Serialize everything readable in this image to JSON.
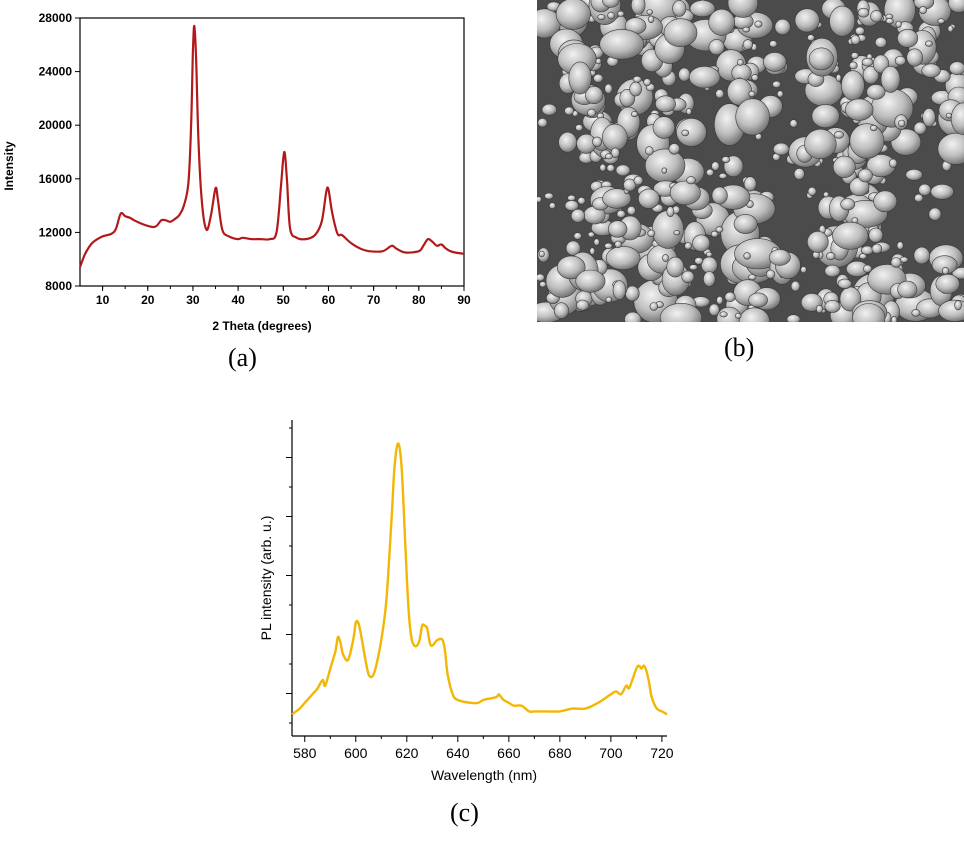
{
  "panels": {
    "a": {
      "label": "(a)"
    },
    "b": {
      "label": "(b)"
    },
    "c": {
      "label": "(c)"
    }
  },
  "colors": {
    "xrd_line": "#b11a1a",
    "pl_line": "#f2b705",
    "sem_bg": "#4b4b4b"
  },
  "chart_data": [
    {
      "id": "xrd",
      "type": "line",
      "xlabel": "2 Theta (degrees)",
      "ylabel": "Intensity",
      "xlim": [
        5,
        90
      ],
      "ylim": [
        8000,
        28000
      ],
      "xticks": [
        10,
        20,
        30,
        40,
        50,
        60,
        70,
        80,
        90
      ],
      "yticks": [
        8000,
        12000,
        16000,
        20000,
        24000,
        28000
      ],
      "grid": false,
      "series": [
        {
          "color": "#b11a1a",
          "points": [
            [
              5,
              9400
            ],
            [
              6,
              10300
            ],
            [
              7,
              10900
            ],
            [
              8,
              11300
            ],
            [
              10,
              11700
            ],
            [
              12,
              11900
            ],
            [
              13,
              12300
            ],
            [
              14,
              13400
            ],
            [
              15,
              13200
            ],
            [
              16,
              13100
            ],
            [
              17,
              12900
            ],
            [
              19,
              12600
            ],
            [
              21,
              12400
            ],
            [
              22,
              12500
            ],
            [
              23,
              12900
            ],
            [
              24,
              12900
            ],
            [
              25,
              12800
            ],
            [
              26,
              13000
            ],
            [
              27,
              13300
            ],
            [
              28,
              14000
            ],
            [
              29,
              15700
            ],
            [
              29.6,
              20000
            ],
            [
              30,
              25500
            ],
            [
              30.3,
              27400
            ],
            [
              30.7,
              25000
            ],
            [
              31.2,
              19000
            ],
            [
              32,
              14200
            ],
            [
              33,
              12200
            ],
            [
              34,
              13300
            ],
            [
              35,
              15300
            ],
            [
              35.5,
              14500
            ],
            [
              36.5,
              12200
            ],
            [
              38,
              11700
            ],
            [
              40,
              11500
            ],
            [
              41,
              11600
            ],
            [
              43,
              11500
            ],
            [
              45,
              11500
            ],
            [
              47,
              11500
            ],
            [
              48.5,
              12000
            ],
            [
              49.5,
              15500
            ],
            [
              50.2,
              18000
            ],
            [
              50.8,
              16000
            ],
            [
              51.5,
              12300
            ],
            [
              53,
              11600
            ],
            [
              55,
              11500
            ],
            [
              57,
              11800
            ],
            [
              58.5,
              12800
            ],
            [
              59.5,
              15000
            ],
            [
              60,
              15200
            ],
            [
              60.8,
              13500
            ],
            [
              62,
              11900
            ],
            [
              63,
              11800
            ],
            [
              65,
              11200
            ],
            [
              67,
              10800
            ],
            [
              69,
              10600
            ],
            [
              72,
              10600
            ],
            [
              74,
              11000
            ],
            [
              75,
              10800
            ],
            [
              77,
              10500
            ],
            [
              80,
              10600
            ],
            [
              81,
              11000
            ],
            [
              82,
              11500
            ],
            [
              83,
              11300
            ],
            [
              84,
              11000
            ],
            [
              85,
              11100
            ],
            [
              86,
              10800
            ],
            [
              87,
              10600
            ],
            [
              88,
              10500
            ],
            [
              90,
              10400
            ]
          ]
        }
      ]
    },
    {
      "id": "pl",
      "type": "line",
      "xlabel": "Wavelength (nm)",
      "ylabel": "PL intensity (arb. u.)",
      "xlim": [
        575,
        722
      ],
      "ylim": [
        0,
        100
      ],
      "xticks": [
        580,
        600,
        620,
        640,
        660,
        680,
        700,
        720
      ],
      "grid": false,
      "series": [
        {
          "color": "#f2b705",
          "points": [
            [
              575,
              2
            ],
            [
              578,
              4
            ],
            [
              580,
              6
            ],
            [
              583,
              9
            ],
            [
              585,
              11
            ],
            [
              587,
              14
            ],
            [
              588,
              12
            ],
            [
              590,
              18
            ],
            [
              592,
              24
            ],
            [
              593,
              29
            ],
            [
              594,
              27
            ],
            [
              595,
              23
            ],
            [
              597,
              21
            ],
            [
              599,
              28
            ],
            [
              600,
              34
            ],
            [
              601,
              34
            ],
            [
              602,
              30
            ],
            [
              604,
              20
            ],
            [
              605,
              16
            ],
            [
              606,
              15
            ],
            [
              607,
              16
            ],
            [
              608,
              19
            ],
            [
              610,
              28
            ],
            [
              612,
              42
            ],
            [
              614,
              70
            ],
            [
              615,
              86
            ],
            [
              616,
              95
            ],
            [
              617,
              96
            ],
            [
              618,
              88
            ],
            [
              619,
              70
            ],
            [
              620,
              50
            ],
            [
              621,
              35
            ],
            [
              622,
              28
            ],
            [
              623,
              26
            ],
            [
              624,
              26
            ],
            [
              625,
              28
            ],
            [
              626,
              33
            ],
            [
              627,
              33
            ],
            [
              628,
              32
            ],
            [
              629,
              27
            ],
            [
              630,
              26
            ],
            [
              632,
              28
            ],
            [
              634,
              28
            ],
            [
              635,
              24
            ],
            [
              636,
              16
            ],
            [
              638,
              9
            ],
            [
              640,
              7
            ],
            [
              645,
              6
            ],
            [
              648,
              6
            ],
            [
              650,
              7
            ],
            [
              655,
              8
            ],
            [
              656,
              9
            ],
            [
              657,
              8
            ],
            [
              658,
              7
            ],
            [
              660,
              6
            ],
            [
              662,
              5
            ],
            [
              665,
              5
            ],
            [
              668,
              3
            ],
            [
              670,
              3
            ],
            [
              675,
              3
            ],
            [
              680,
              3
            ],
            [
              685,
              4
            ],
            [
              690,
              4
            ],
            [
              695,
              6
            ],
            [
              700,
              9
            ],
            [
              702,
              10
            ],
            [
              704,
              9
            ],
            [
              706,
              12
            ],
            [
              707,
              11
            ],
            [
              708,
              13
            ],
            [
              710,
              18
            ],
            [
              711,
              19
            ],
            [
              712,
              18
            ],
            [
              713,
              19
            ],
            [
              714,
              17
            ],
            [
              715,
              13
            ],
            [
              716,
              8
            ],
            [
              718,
              4
            ],
            [
              720,
              3
            ],
            [
              722,
              2
            ]
          ]
        }
      ]
    }
  ]
}
